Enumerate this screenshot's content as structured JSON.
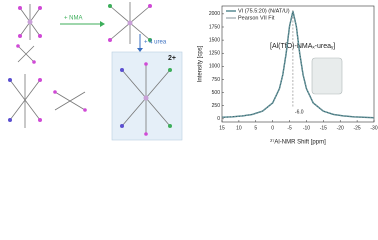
{
  "scheme": {
    "step_1": "+ NMA",
    "step_2": "+ 4 urea",
    "charge": "2+"
  },
  "chart_data": {
    "type": "line",
    "y_label": "Intensity [cps]",
    "x_label": "²⁷Al-NMR  Shift [ppm]",
    "annotation": "[Al(TfO)-NMAₓ-ureaᵧ]",
    "peak": {
      "x": -6,
      "label": "-6.0"
    },
    "x": [
      15,
      12,
      9,
      6,
      3,
      0,
      -2,
      -3,
      -4,
      -5,
      -6,
      -7,
      -8,
      -9,
      -10,
      -12,
      -15,
      -18,
      -21,
      -24,
      -27,
      -30
    ],
    "series": [
      {
        "name": "VI (75.5:20) (N/AT/U)",
        "color": "#2f6f78",
        "values": [
          29,
          39,
          55,
          85,
          147,
          303,
          576,
          840,
          1250,
          1767,
          2050,
          1767,
          1250,
          840,
          576,
          303,
          147,
          85,
          55,
          39,
          29,
          22
        ]
      },
      {
        "name": "Pearson VII Fit",
        "color": "#9aa4a8",
        "values": [
          29,
          39,
          55,
          85,
          147,
          303,
          576,
          840,
          1250,
          1767,
          2050,
          1767,
          1250,
          840,
          576,
          303,
          147,
          85,
          55,
          39,
          29,
          22
        ]
      }
    ],
    "xlim": [
      15,
      -30
    ],
    "xticks": [
      15,
      10,
      5,
      0,
      -5,
      -10,
      -15,
      -20,
      -25,
      -30
    ],
    "ylim": [
      -60,
      2150
    ],
    "yticks": [
      0,
      250,
      500,
      750,
      1000,
      1250,
      1500,
      1750,
      2000
    ]
  }
}
